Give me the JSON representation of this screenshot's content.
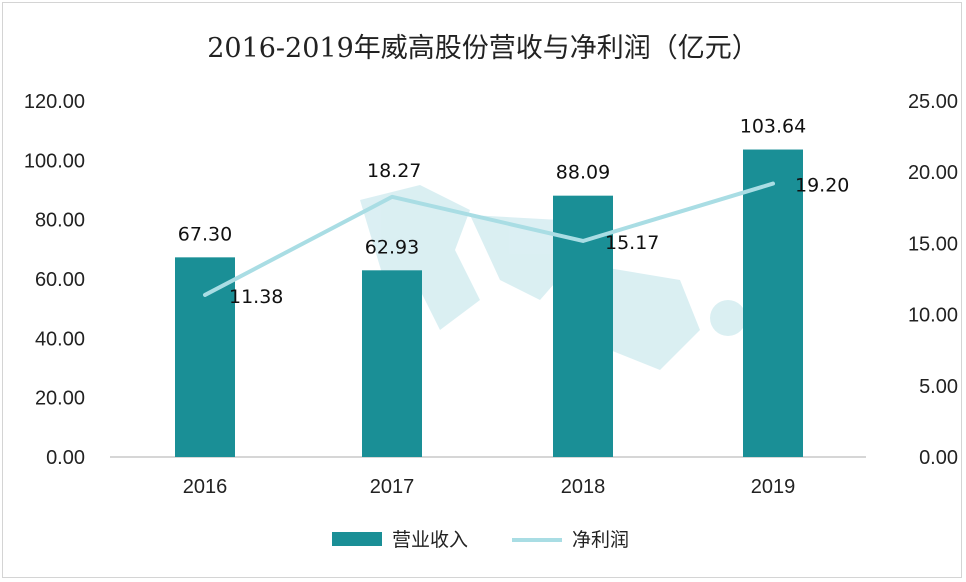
{
  "chart_data": {
    "type": "bar+line",
    "title": "2016-2019年威高股份营收与净利润（亿元）",
    "categories": [
      "2016",
      "2017",
      "2018",
      "2019"
    ],
    "series": [
      {
        "name": "营业收入",
        "kind": "bar",
        "axis": "left",
        "values": [
          67.3,
          62.93,
          88.09,
          103.64
        ],
        "labels": [
          "67.30",
          "62.93",
          "88.09",
          "103.64"
        ],
        "color": "#1a8f96"
      },
      {
        "name": "净利润",
        "kind": "line",
        "axis": "right",
        "values": [
          11.38,
          18.27,
          15.17,
          19.2
        ],
        "labels": [
          "11.38",
          "18.27",
          "15.17",
          "19.20"
        ],
        "color": "#a9dde4"
      }
    ],
    "y_left": {
      "ylim": [
        0,
        120
      ],
      "ticks": [
        "0.00",
        "20.00",
        "40.00",
        "60.00",
        "80.00",
        "100.00",
        "120.00"
      ]
    },
    "y_right": {
      "ylim": [
        0,
        25
      ],
      "ticks": [
        "0.00",
        "5.00",
        "10.00",
        "15.00",
        "20.00",
        "25.00"
      ]
    },
    "grid": false,
    "legend_position": "bottom-center"
  }
}
